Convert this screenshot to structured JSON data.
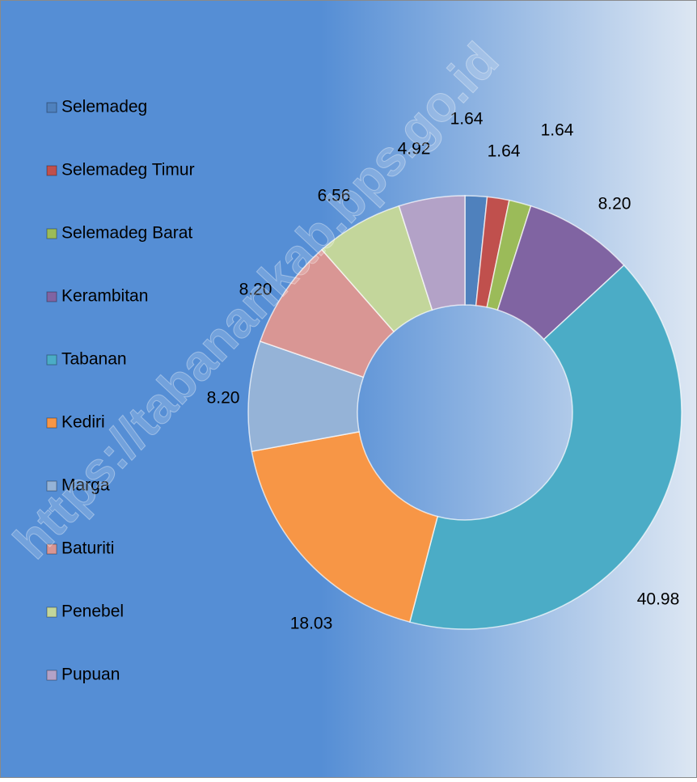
{
  "chart_data": {
    "type": "donut",
    "annotation": "https://tabanankab.bps.go.id",
    "categories": [
      "Selemadeg",
      "Selemadeg Timur",
      "Selemadeg Barat",
      "Kerambitan",
      "Tabanan",
      "Kediri",
      "Marga",
      "Baturiti",
      "Penebel",
      "Pupuan"
    ],
    "values": [
      1.64,
      1.64,
      1.64,
      8.2,
      40.98,
      18.03,
      8.2,
      8.2,
      6.56,
      4.92
    ],
    "value_labels": [
      "1.64",
      "1.64",
      "1.64",
      "8.20",
      "40.98",
      "18.03",
      "8.20",
      "8.20",
      "6.56",
      "4.92"
    ],
    "colors": [
      "#4f81bd",
      "#c0504d",
      "#9bbb59",
      "#8064a2",
      "#4bacc6",
      "#f79646",
      "#95b3d7",
      "#d99694",
      "#c3d69b",
      "#b3a2c7"
    ],
    "legend": "left"
  }
}
